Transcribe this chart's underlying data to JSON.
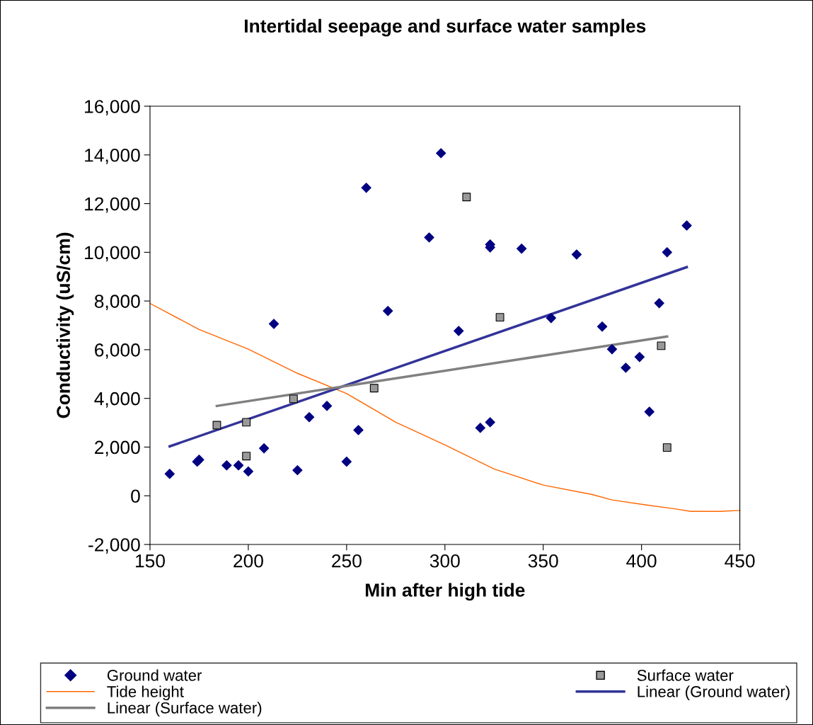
{
  "chart_data": {
    "type": "scatter",
    "title": "Intertidal seepage and surface water samples",
    "xlabel": "Min after high tide",
    "ylabel": "Conductivity (uS/cm)",
    "xlim": [
      150,
      450
    ],
    "xticks": [
      150,
      200,
      250,
      300,
      350,
      400,
      450
    ],
    "ylim": [
      -2000,
      16000
    ],
    "yticks": [
      {
        "value": -2000,
        "label": "-2,000"
      },
      {
        "value": 0,
        "label": "0"
      },
      {
        "value": 2000,
        "label": "2,000"
      },
      {
        "value": 4000,
        "label": "4,000"
      },
      {
        "value": 6000,
        "label": "6,000"
      },
      {
        "value": 8000,
        "label": "8,000"
      },
      {
        "value": 10000,
        "label": "10,000"
      },
      {
        "value": 12000,
        "label": "12,000"
      },
      {
        "value": 14000,
        "label": "14,000"
      },
      {
        "value": 16000,
        "label": "16,000"
      }
    ],
    "grid": false,
    "legend": "bottom",
    "series": [
      {
        "name": "Ground water",
        "marker": "diamond",
        "color": "#000080",
        "x": [
          160,
          174,
          175,
          189,
          195,
          200,
          208,
          213,
          225,
          231,
          240,
          250,
          256,
          260,
          271,
          292,
          298,
          307,
          318,
          323,
          323,
          323,
          339,
          354,
          367,
          380,
          385,
          392,
          399,
          404,
          409,
          413,
          423
        ],
        "values": [
          900,
          1400,
          1480,
          1250,
          1250,
          1000,
          1950,
          7060,
          1050,
          3230,
          3690,
          1400,
          2700,
          12650,
          7590,
          10610,
          14070,
          6770,
          2790,
          10320,
          10200,
          3020,
          10150,
          7300,
          9910,
          6950,
          6020,
          5260,
          5700,
          3450,
          7910,
          10000,
          11100
        ]
      },
      {
        "name": "Surface water",
        "marker": "square",
        "color": "#999999",
        "x": [
          184,
          199,
          199,
          223,
          264,
          311,
          328,
          410,
          413
        ],
        "values": [
          2900,
          3020,
          1630,
          3980,
          4420,
          12270,
          7330,
          6160,
          1980
        ]
      },
      {
        "name": "Tide height",
        "type": "line",
        "marker": "none",
        "color": "#ff6600",
        "x": [
          150,
          175,
          200,
          225,
          250,
          275,
          300,
          325,
          350,
          375,
          385,
          400,
          418,
          425,
          440,
          450
        ],
        "values": [
          7900,
          6830,
          6020,
          5030,
          4200,
          3020,
          2090,
          1100,
          440,
          50,
          -170,
          -350,
          -550,
          -640,
          -640,
          -600
        ]
      },
      {
        "name": "Linear (Ground water)",
        "type": "line",
        "marker": "none",
        "color": "#333399",
        "x": [
          160,
          423
        ],
        "values": [
          2030,
          9390
        ]
      },
      {
        "name": "Linear (Surface water)",
        "type": "line",
        "marker": "none",
        "color": "#808080",
        "x": [
          184,
          413
        ],
        "values": [
          3690,
          6540
        ]
      }
    ]
  }
}
